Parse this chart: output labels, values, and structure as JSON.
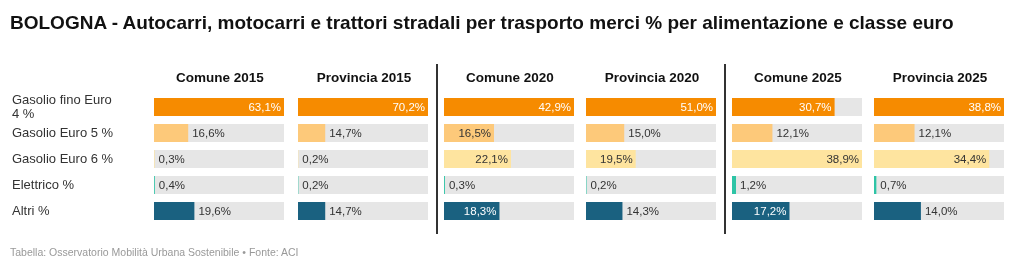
{
  "chart_data": [
    {
      "type": "other",
      "title": "BOLOGNA - Autocarri, motocarri e trattori stradali per trasporto merci % per alimentazione e classe euro",
      "annotations": [
        "Tabella: Osservatorio Mobilità Urbana Sostenibile • Fonte: ACI"
      ]
    },
    {
      "type": "bar",
      "orientation": "horizontal",
      "title": "Comune 2015",
      "categories": [
        "Gasolio fino Euro 4 %",
        "Gasolio Euro 5 %",
        "Gasolio Euro 6 %",
        "Elettrico %",
        "Altri %"
      ],
      "values": [
        63.1,
        16.6,
        0.3,
        0.4,
        19.6
      ],
      "value_labels": [
        "63,1%",
        "16,6%",
        "0,3%",
        "0,4%",
        "19,6%"
      ],
      "colors": [
        "#f68b00",
        "#fdc97a",
        "#fee49f",
        "#2ec4a6",
        "#1a6180"
      ],
      "tick_labels": "y"
    },
    {
      "type": "bar",
      "orientation": "horizontal",
      "title": "Provincia 2015",
      "values": [
        70.2,
        14.7,
        0.2,
        0.2,
        14.7
      ],
      "value_labels": [
        "70,2%",
        "14,7%",
        "0,2%",
        "0,2%",
        "14,7%"
      ],
      "colors": [
        "#f68b00",
        "#fdc97a",
        "#fee49f",
        "#2ec4a6",
        "#1a6180"
      ],
      "tick_labels": false
    },
    {
      "type": "bar",
      "orientation": "horizontal",
      "title": "Comune 2020",
      "values": [
        42.9,
        16.5,
        22.1,
        0.3,
        18.3
      ],
      "value_labels": [
        "42,9%",
        "16,5%",
        "22,1%",
        "0,3%",
        "18,3%"
      ],
      "colors": [
        "#f68b00",
        "#fdc97a",
        "#fee49f",
        "#2ec4a6",
        "#1a6180"
      ],
      "tick_labels": false
    },
    {
      "type": "bar",
      "orientation": "horizontal",
      "title": "Provincia 2020",
      "values": [
        51.0,
        15.0,
        19.5,
        0.2,
        14.3
      ],
      "value_labels": [
        "51,0%",
        "15,0%",
        "19,5%",
        "0,2%",
        "14,3%"
      ],
      "colors": [
        "#f68b00",
        "#fdc97a",
        "#fee49f",
        "#2ec4a6",
        "#1a6180"
      ],
      "tick_labels": false
    },
    {
      "type": "bar",
      "orientation": "horizontal",
      "title": "Comune 2025",
      "values": [
        30.7,
        12.1,
        38.9,
        1.2,
        17.2
      ],
      "value_labels": [
        "30,7%",
        "12,1%",
        "38,9%",
        "1,2%",
        "17,2%"
      ],
      "colors": [
        "#f68b00",
        "#fdc97a",
        "#fee49f",
        "#2ec4a6",
        "#1a6180"
      ],
      "tick_labels": false
    },
    {
      "type": "bar",
      "orientation": "horizontal",
      "title": "Provincia 2025",
      "values": [
        38.8,
        12.1,
        34.4,
        0.7,
        14.0
      ],
      "value_labels": [
        "38,8%",
        "12,1%",
        "34,4%",
        "0,7%",
        "14,0%"
      ],
      "colors": [
        "#f68b00",
        "#fdc97a",
        "#fee49f",
        "#2ec4a6",
        "#1a6180"
      ],
      "tick_labels": false
    }
  ]
}
